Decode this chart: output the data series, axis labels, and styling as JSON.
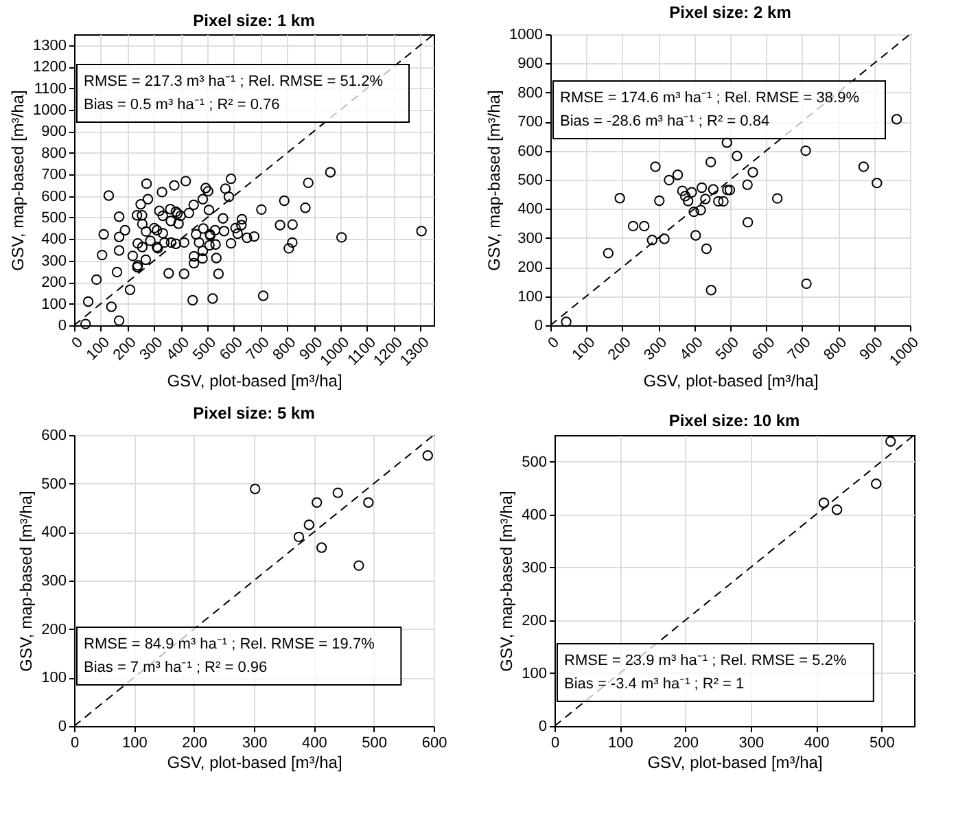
{
  "chart_data": [
    {
      "type": "scatter",
      "title": "Pixel size: 1 km",
      "xlabel": "GSV, plot-based [m³/ha]",
      "ylabel": "GSV, map-based [m³/ha]",
      "xlim": [
        0,
        1350
      ],
      "ylim": [
        0,
        1350
      ],
      "xticks": [
        0,
        100,
        200,
        300,
        400,
        500,
        600,
        700,
        800,
        900,
        1000,
        1100,
        1200,
        1300
      ],
      "yticks": [
        0,
        100,
        200,
        300,
        400,
        500,
        600,
        700,
        800,
        900,
        1000,
        1100,
        1200,
        1300
      ],
      "grid": true,
      "annotations": [
        "RMSE = 217.3 m³ ha⁻¹ ; Rel. RMSE = 51.2%",
        "Bias = 0.5 m³ ha⁻¹ ; R² = 0.76"
      ],
      "series": [
        {
          "type": "scatter",
          "color": "#000000",
          "marker": "circle",
          "x": [
            43,
            53,
            84,
            140,
            169,
            130,
            111,
            105,
            161,
            169,
            169,
            169,
            191,
            210,
            220,
            236,
            239,
            239,
            237,
            250,
            255,
            256,
            256,
            269,
            272,
            277,
            270,
            286,
            301,
            311,
            314,
            311,
            330,
            320,
            333,
            333,
            339,
            355,
            361,
            363,
            364,
            376,
            382,
            382,
            388,
            392,
            400,
            413,
            413,
            419,
            431,
            449,
            445,
            450,
            450,
            458,
            469,
            483,
            485,
            482,
            483,
            494,
            503,
            510,
            506,
            511,
            508,
            520,
            529,
            534,
            542,
            531,
            559,
            563,
            568,
            581,
            589,
            589,
            606,
            614,
            630,
            628,
            649,
            676,
            703,
            710,
            773,
            789,
            806,
            819,
            820,
            868,
            879,
            962,
            1004,
            1304
          ],
          "values": [
            6,
            110,
            212,
            86,
            22,
            602,
            422,
            326,
            247,
            504,
            410,
            347,
            441,
            165,
            322,
            510,
            380,
            278,
            270,
            561,
            510,
            470,
            363,
            304,
            657,
            585,
            435,
            392,
            451,
            363,
            357,
            441,
            618,
            531,
            508,
            427,
            384,
            241,
            539,
            484,
            384,
            649,
            527,
            378,
            519,
            471,
            508,
            239,
            384,
            669,
            521,
            559,
            116,
            288,
            320,
            422,
            384,
            585,
            449,
            310,
            345,
            637,
            622,
            422,
            535,
            416,
            371,
            124,
            441,
            312,
            239,
            375,
            496,
            437,
            634,
            596,
            680,
            380,
            451,
            425,
            492,
            465,
            406,
            412,
            537,
            137,
            465,
            578,
            357,
            384,
            467,
            545,
            661,
            710,
            408,
            437
          ]
        },
        {
          "type": "line",
          "color": "#000000",
          "line_style": "dashed",
          "x": [
            0,
            1350
          ],
          "values": [
            0,
            1350
          ]
        }
      ]
    },
    {
      "type": "scatter",
      "title": "Pixel size: 2 km",
      "xlabel": "GSV, plot-based [m³/ha]",
      "ylabel": "GSV, map-based [m³/ha]",
      "xlim": [
        0,
        1000
      ],
      "ylim": [
        0,
        1000
      ],
      "xticks": [
        0,
        100,
        200,
        300,
        400,
        500,
        600,
        700,
        800,
        900,
        1000
      ],
      "yticks": [
        0,
        100,
        200,
        300,
        400,
        500,
        600,
        700,
        800,
        900,
        1000
      ],
      "grid": true,
      "annotations": [
        "RMSE = 174.6 m³ ha⁻¹ ; Rel. RMSE = 38.9%",
        "Bias = -28.6 m³ ha⁻¹ ; R² = 0.84"
      ],
      "series": [
        {
          "type": "scatter",
          "color": "#000000",
          "marker": "circle",
          "x": [
            44,
            161,
            193,
            230,
            261,
            283,
            292,
            303,
            317,
            330,
            354,
            367,
            375,
            383,
            393,
            399,
            404,
            418,
            421,
            431,
            434,
            446,
            447,
            453,
            467,
            481,
            491,
            492,
            499,
            519,
            548,
            549,
            563,
            631,
            710,
            712,
            871,
            908,
            963
          ],
          "values": [
            12,
            248,
            437,
            341,
            341,
            293,
            545,
            428,
            297,
            499,
            517,
            462,
            444,
            427,
            457,
            390,
            309,
            396,
            473,
            434,
            263,
            561,
            121,
            467,
            426,
            426,
            628,
            465,
            465,
            582,
            483,
            354,
            526,
            436,
            600,
            143,
            545,
            489,
            708
          ]
        },
        {
          "type": "line",
          "color": "#000000",
          "line_style": "dashed",
          "x": [
            0,
            1000
          ],
          "values": [
            0,
            1000
          ]
        }
      ]
    },
    {
      "type": "scatter",
      "title": "Pixel size: 5 km",
      "xlabel": "GSV, plot-based [m³/ha]",
      "ylabel": "GSV, map-based [m³/ha]",
      "xlim": [
        0,
        600
      ],
      "ylim": [
        0,
        600
      ],
      "xticks": [
        0,
        100,
        200,
        300,
        400,
        500,
        600
      ],
      "yticks": [
        0,
        100,
        200,
        300,
        400,
        500,
        600
      ],
      "grid": true,
      "annotations": [
        "RMSE = 84.9 m³ ha⁻¹ ; Rel. RMSE = 19.7%",
        "Bias = 7 m³ ha⁻¹ ; R² = 0.96"
      ],
      "series": [
        {
          "type": "scatter",
          "color": "#000000",
          "marker": "circle",
          "x": [
            302,
            375,
            392,
            405,
            413,
            440,
            475,
            491,
            590
          ],
          "values": [
            489,
            390,
            415,
            461,
            368,
            481,
            331,
            461,
            558
          ]
        },
        {
          "type": "line",
          "color": "#000000",
          "line_style": "dashed",
          "x": [
            0,
            600
          ],
          "values": [
            0,
            600
          ]
        }
      ]
    },
    {
      "type": "scatter",
      "title": "Pixel size: 10 km",
      "xlabel": "GSV, plot-based [m³/ha]",
      "ylabel": "GSV, map-based [m³/ha]",
      "xlim": [
        0,
        550
      ],
      "ylim": [
        0,
        550
      ],
      "xticks": [
        0,
        100,
        200,
        300,
        400,
        500
      ],
      "yticks": [
        0,
        100,
        200,
        300,
        400,
        500
      ],
      "grid": true,
      "annotations": [
        "RMSE = 23.9 m³ ha⁻¹ ; Rel. RMSE = 5.2%",
        "Bias = -3.4 m³ ha⁻¹ ; R² = 1"
      ],
      "series": [
        {
          "type": "scatter",
          "color": "#000000",
          "marker": "circle",
          "x": [
            412,
            432,
            492,
            514
          ],
          "values": [
            422,
            409,
            458,
            538
          ]
        },
        {
          "type": "line",
          "color": "#000000",
          "line_style": "dashed",
          "x": [
            0,
            550
          ],
          "values": [
            0,
            550
          ]
        }
      ]
    }
  ]
}
